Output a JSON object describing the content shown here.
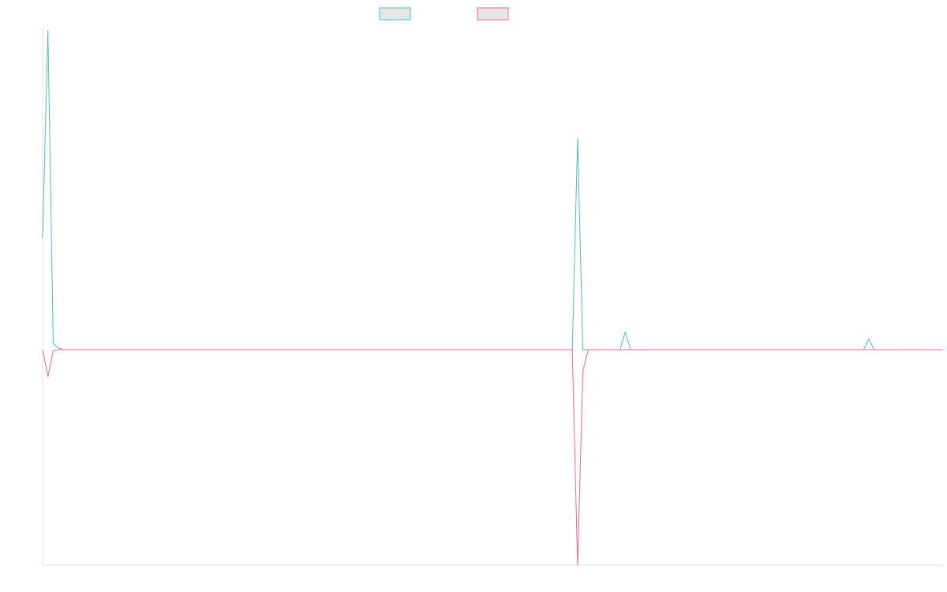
{
  "chart_data": {
    "type": "line",
    "title": "",
    "xlabel": "",
    "ylabel": "",
    "grid": false,
    "legend": "top-center",
    "ylim": [
      -1,
      1
    ],
    "x": [
      0,
      1,
      2,
      3,
      4,
      5,
      6,
      100,
      101,
      102,
      103,
      109,
      110,
      111,
      155,
      156,
      157,
      165,
      170
    ],
    "series": [
      {
        "color": "#4bc0c0",
        "values": [
          0.35,
          1.0,
          0.02,
          0.005,
          0.0,
          0.0,
          0.0,
          0.0,
          0.66,
          0.0,
          0.0,
          0.0,
          0.055,
          0.0,
          0.0,
          0.033,
          0.0,
          0.0,
          0.0
        ]
      },
      {
        "color": "#ff6384",
        "values": [
          0.0,
          -0.125,
          -0.005,
          0.0,
          0.0,
          0.0,
          0.0,
          0.0,
          -1.0,
          -0.1,
          0.0,
          0.0,
          0.0,
          0.0,
          0.0,
          0.0,
          0.0,
          0.0,
          0.0
        ]
      }
    ]
  }
}
